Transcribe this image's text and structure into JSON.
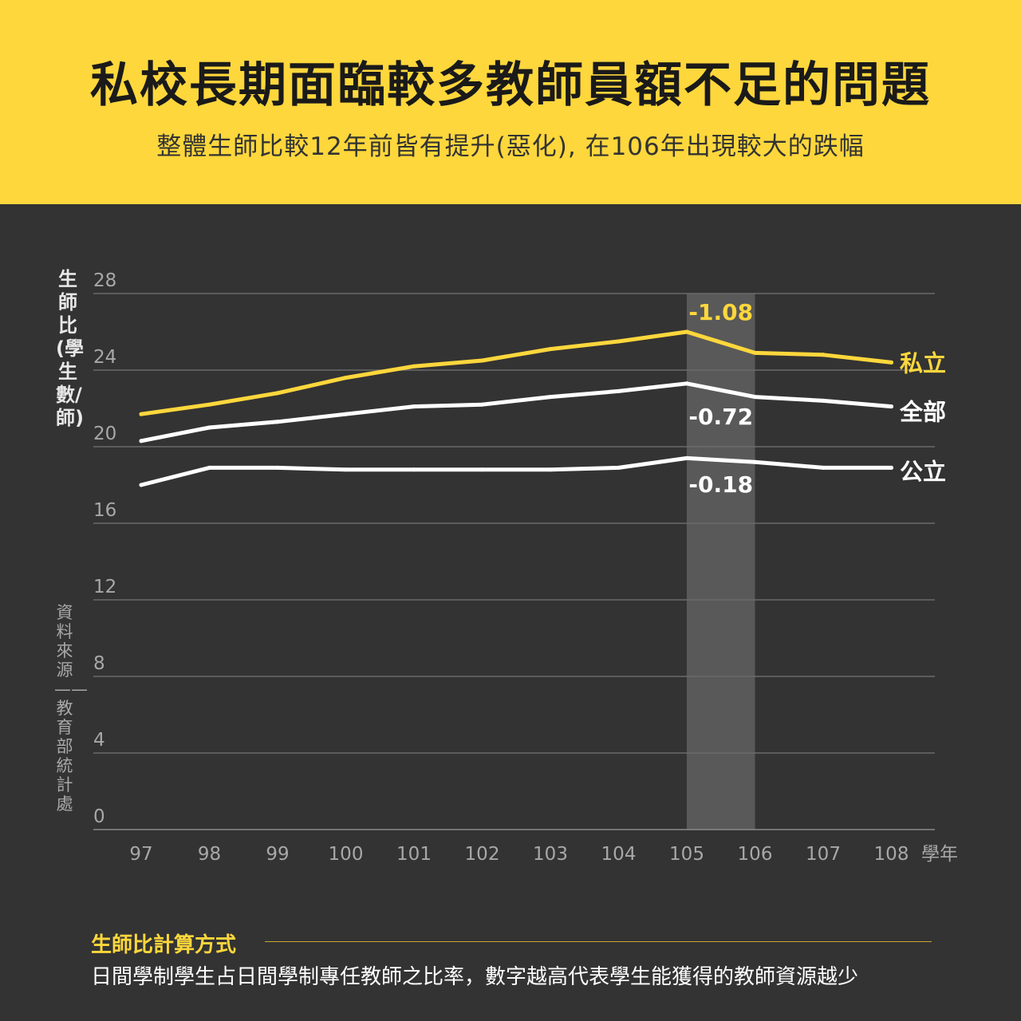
{
  "header": {
    "title": "私校長期面臨較多教師員額不足的問題",
    "subtitle": "整體生師比較12年前皆有提升(惡化), 在106年出現較大的跌幅"
  },
  "axis": {
    "ylabel": "生師比(學生數/師)",
    "xlabel": "學年",
    "source": "資料來源——教育部統計處"
  },
  "chart_data": {
    "type": "line",
    "title": "私校長期面臨較多教師員額不足的問題",
    "xlabel": "學年",
    "ylabel": "生師比(學生數/師)",
    "categories": [
      "97",
      "98",
      "99",
      "100",
      "101",
      "102",
      "103",
      "104",
      "105",
      "106",
      "107",
      "108"
    ],
    "ylim": [
      0,
      28
    ],
    "yticks": [
      0,
      4,
      8,
      12,
      16,
      20,
      24,
      28
    ],
    "series": [
      {
        "name": "私立",
        "color": "#fed73c",
        "values": [
          21.7,
          22.2,
          22.8,
          23.6,
          24.2,
          24.5,
          25.1,
          25.5,
          26.0,
          24.9,
          24.8,
          24.4
        ]
      },
      {
        "name": "全部",
        "color": "#ffffff",
        "values": [
          20.3,
          21.0,
          21.3,
          21.7,
          22.1,
          22.2,
          22.6,
          22.9,
          23.3,
          22.6,
          22.4,
          22.1
        ]
      },
      {
        "name": "公立",
        "color": "#ffffff",
        "values": [
          18.0,
          18.9,
          18.9,
          18.8,
          18.8,
          18.8,
          18.8,
          18.9,
          19.4,
          19.2,
          18.9,
          18.9
        ]
      }
    ],
    "highlight": {
      "from": "105",
      "to": "106"
    },
    "annotations": [
      {
        "series": "私立",
        "text": "-1.08",
        "color": "#fed73c"
      },
      {
        "series": "全部",
        "text": "-0.72",
        "color": "#ffffff"
      },
      {
        "series": "公立",
        "text": "-0.18",
        "color": "#ffffff"
      }
    ],
    "grid": true
  },
  "note": {
    "title": "生師比計算方式",
    "text": "日間學制學生占日間學制專任教師之比率，數字越高代表學生能獲得的教師資源越少"
  }
}
